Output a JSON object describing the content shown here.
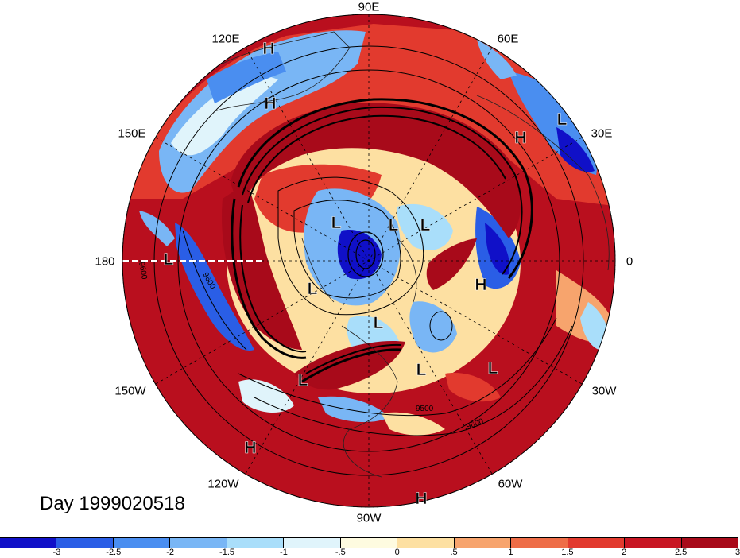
{
  "title": "Day 1999020518",
  "lon_labels": {
    "lon_90e": "90E",
    "lon_60e": "60E",
    "lon_120e": "120E",
    "lon_30e": "30E",
    "lon_150e": "150E",
    "lon_180": "180",
    "lon_0": "0",
    "lon_150w": "150W",
    "lon_30w": "30W",
    "lon_120w": "120W",
    "lon_60w": "60W",
    "lon_90w": "90W"
  },
  "pressure_markers": [
    {
      "label": "H"
    },
    {
      "label": "H"
    },
    {
      "label": "L"
    },
    {
      "label": "H"
    },
    {
      "label": "L"
    },
    {
      "label": "L"
    },
    {
      "label": "L"
    },
    {
      "label": "L"
    },
    {
      "label": "L"
    },
    {
      "label": "H"
    },
    {
      "label": "L"
    },
    {
      "label": "L"
    },
    {
      "label": "L"
    },
    {
      "label": "L"
    },
    {
      "label": "H"
    },
    {
      "label": "H"
    }
  ],
  "contour_labels": {
    "c9600a": "9600",
    "c9600b": "9600",
    "c9500": "9500",
    "c9600c": "9600"
  },
  "colorbar": {
    "colors": [
      "#1010c8",
      "#2a5ee6",
      "#4a8ef0",
      "#79b6f5",
      "#a9defa",
      "#e0f4fb",
      "#fefbe0",
      "#fde0a2",
      "#f7a46d",
      "#ee6d47",
      "#e23a2e",
      "#c81623",
      "#a80a1a"
    ],
    "ticks": [
      "-3",
      "-2.5",
      "-2",
      "-1.5",
      "-1",
      "-.5",
      "0",
      ".5",
      "1",
      "1.5",
      "2",
      "2.5",
      "3"
    ]
  }
}
